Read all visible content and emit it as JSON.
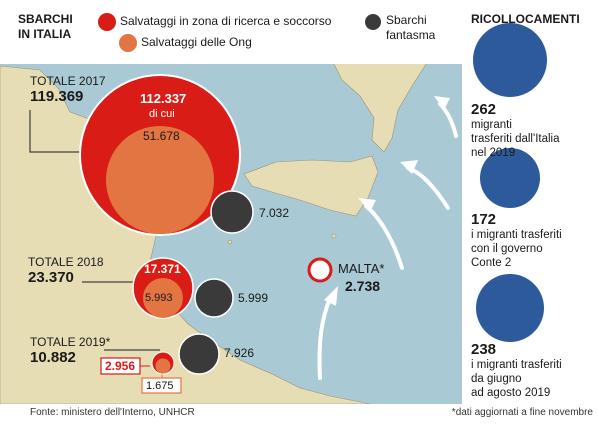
{
  "colors": {
    "sea": "#a9c9d4",
    "land": "#e6ddb5",
    "red": "#d91c16",
    "orange": "#e37542",
    "dark": "#3a3a3a",
    "blue": "#2d5a9a",
    "panel": "#ffffff"
  },
  "header": {
    "title_line1": "SBARCHI",
    "title_line2": "IN ITALIA",
    "legend_red": "Salvataggi in zona di ricerca e soccorso",
    "legend_orange": "Salvataggi delle Ong",
    "legend_dark_line1": "Sbarchi",
    "legend_dark_line2": "fantasma"
  },
  "years": [
    {
      "label": "TOTALE 2017",
      "total": "119.369",
      "sar": "112.337",
      "sar_note": "di cui",
      "ong": "51.678",
      "ghost": "7.032"
    },
    {
      "label": "TOTALE 2018",
      "total": "23.370",
      "sar": "17.371",
      "ong": "5.993",
      "ghost": "5.999"
    },
    {
      "label": "TOTALE 2019*",
      "total": "10.882",
      "sar": "2.956",
      "ong": "1.675",
      "ghost": "7.926"
    }
  ],
  "malta": {
    "label": "MALTA*",
    "value": "2.738"
  },
  "relocations": {
    "title": "RICOLLOCAMENTI",
    "items": [
      {
        "value": "262",
        "line1": "migranti",
        "line2": "trasferiti dall'Italia",
        "line3": "nel 2019"
      },
      {
        "value": "172",
        "line1": "i migranti trasferiti",
        "line2": "con il governo",
        "line3": "Conte 2"
      },
      {
        "value": "238",
        "line1": "i migranti trasferiti",
        "line2": "da giugno",
        "line3": "ad agosto 2019"
      }
    ]
  },
  "footer": {
    "source": "Fonte: ministero dell'Interno, UNHCR",
    "note": "*dati aggiornati a fine novembre"
  }
}
